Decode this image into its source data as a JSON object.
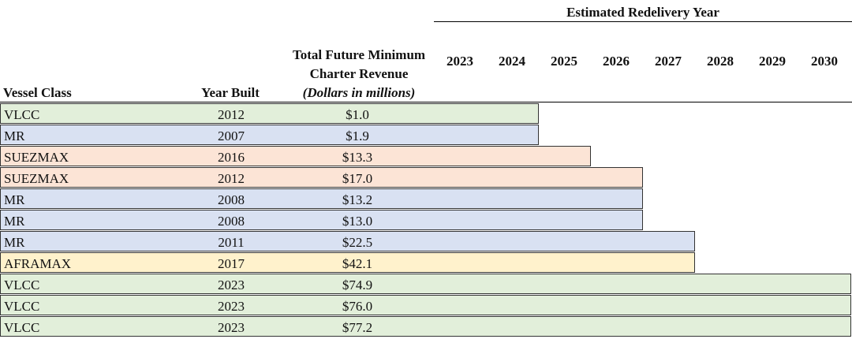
{
  "header": {
    "group_title": "Estimated Redelivery Year",
    "col_class": "Vessel Class",
    "col_year": "Year Built",
    "col_rev_line1": "Total Future Minimum",
    "col_rev_line2": "Charter Revenue",
    "col_rev_unit": "(Dollars in millions)",
    "years": [
      "2023",
      "2024",
      "2025",
      "2026",
      "2027",
      "2028",
      "2029",
      "2030"
    ]
  },
  "colors": {
    "VLCC": "#e2efda",
    "MR": "#d9e1f2",
    "SUEZMAX": "#fce4d6",
    "AFRAMAX": "#fff2cc"
  },
  "rows": [
    {
      "class": "VLCC",
      "year_built": "2012",
      "revenue": "$1.0",
      "redelivery": "2024"
    },
    {
      "class": "MR",
      "year_built": "2007",
      "revenue": "$1.9",
      "redelivery": "2024"
    },
    {
      "class": "SUEZMAX",
      "year_built": "2016",
      "revenue": "$13.3",
      "redelivery": "2025"
    },
    {
      "class": "SUEZMAX",
      "year_built": "2012",
      "revenue": "$17.0",
      "redelivery": "2026"
    },
    {
      "class": "MR",
      "year_built": "2008",
      "revenue": "$13.2",
      "redelivery": "2026"
    },
    {
      "class": "MR",
      "year_built": "2008",
      "revenue": "$13.0",
      "redelivery": "2026"
    },
    {
      "class": "MR",
      "year_built": "2011",
      "revenue": "$22.5",
      "redelivery": "2027"
    },
    {
      "class": "AFRAMAX",
      "year_built": "2017",
      "revenue": "$42.1",
      "redelivery": "2027"
    },
    {
      "class": "VLCC",
      "year_built": "2023",
      "revenue": "$74.9",
      "redelivery": "2030"
    },
    {
      "class": "VLCC",
      "year_built": "2023",
      "revenue": "$76.0",
      "redelivery": "2030"
    },
    {
      "class": "VLCC",
      "year_built": "2023",
      "revenue": "$77.2",
      "redelivery": "2030"
    }
  ]
}
